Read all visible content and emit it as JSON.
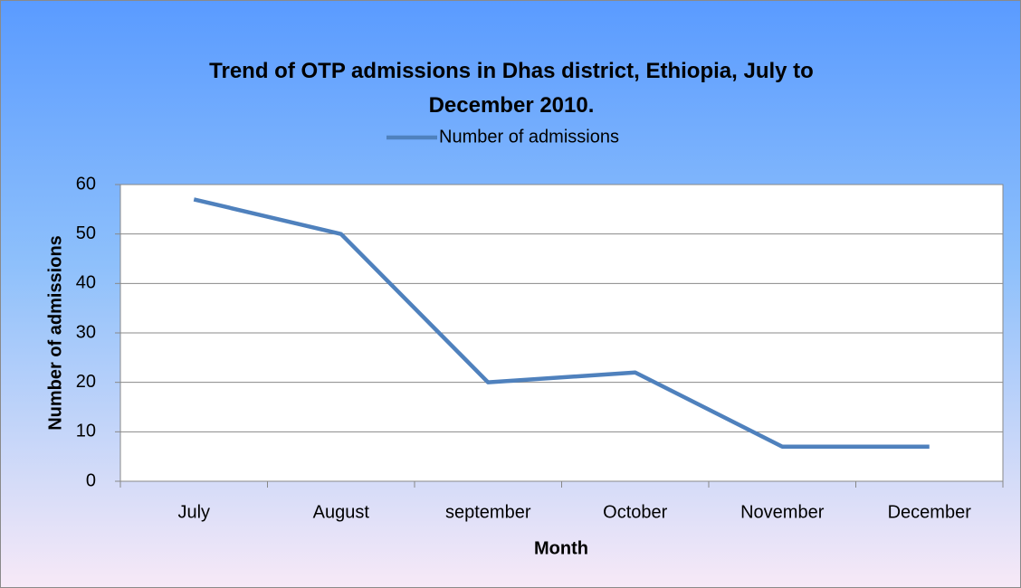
{
  "chart_data": {
    "type": "line",
    "title": "Trend of OTP admissions in Dhas district, Ethiopia, July to December 2010.",
    "categories": [
      "July",
      "August",
      "september",
      "October",
      "November",
      "December"
    ],
    "series": [
      {
        "name": "Number of admissions",
        "color": "#4f81bd",
        "values": [
          57,
          50,
          20,
          22,
          7,
          7
        ]
      }
    ],
    "xlabel": "Month",
    "ylabel": "Number of admissions",
    "ylim": [
      0,
      60
    ],
    "yticks": [
      0,
      10,
      20,
      30,
      40,
      50,
      60
    ],
    "grid": true,
    "legend": "top"
  }
}
